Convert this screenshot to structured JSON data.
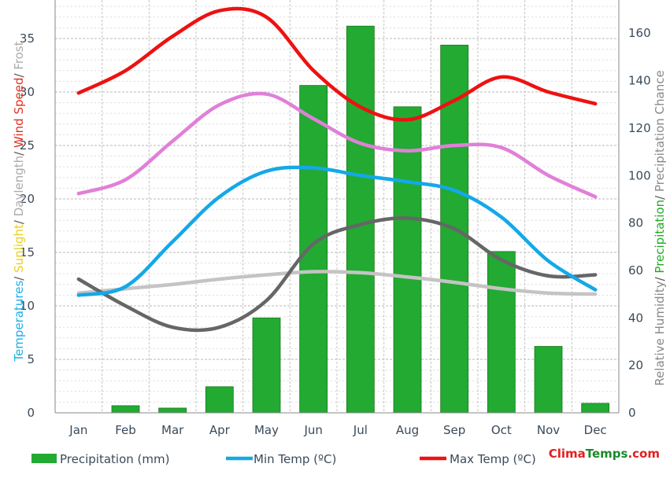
{
  "chart_data": {
    "type": "bar+line",
    "categories": [
      "Jan",
      "Feb",
      "Mar",
      "Apr",
      "May",
      "Jun",
      "Jul",
      "Aug",
      "Sep",
      "Oct",
      "Nov",
      "Dec"
    ],
    "left_axis": {
      "title_parts": [
        {
          "text": "Tempera",
          "color": "#1eaee8"
        },
        {
          "text": "tures",
          "color": "#1eaee8"
        },
        {
          "text": "/ ",
          "color": "#555555"
        },
        {
          "text": "Sunlight",
          "color": "#e8d020"
        },
        {
          "text": "/ ",
          "color": "#555555"
        },
        {
          "text": "Daylength",
          "color": "#aaaaaa"
        },
        {
          "text": "/ ",
          "color": "#555555"
        },
        {
          "text": "Wind Speed",
          "color": "#e03020"
        },
        {
          "text": "/ ",
          "color": "#555555"
        },
        {
          "text": "Frost",
          "color": "#aaaaaa"
        }
      ],
      "ticks": [
        0,
        5,
        10,
        15,
        20,
        25,
        30,
        35
      ],
      "ylim": [
        0,
        38.6
      ]
    },
    "right_axis": {
      "title_parts": [
        {
          "text": "Relative Humidity",
          "color": "#888888"
        },
        {
          "text": "/ ",
          "color": "#555555"
        },
        {
          "text": "Precipitation",
          "color": "#22aa22"
        },
        {
          "text": "/ ",
          "color": "#555555"
        },
        {
          "text": "Precipitation Chance",
          "color": "#888888"
        }
      ],
      "ticks": [
        0,
        20,
        40,
        60,
        80,
        100,
        120,
        140,
        160
      ],
      "ylim": [
        0,
        174
      ]
    },
    "precipitation": {
      "name": "Precipitation (mm)",
      "color": "#22aa33",
      "axis": "right",
      "values": [
        0,
        3,
        2,
        11,
        40,
        138,
        163,
        129,
        155,
        68,
        28,
        4
      ]
    },
    "lines": [
      {
        "key": "min_temp",
        "color": "#14a8e8",
        "axis": "left",
        "values": [
          11.0,
          11.8,
          16.0,
          20.2,
          22.6,
          22.9,
          22.2,
          21.6,
          20.8,
          18.3,
          14.2,
          11.5
        ]
      },
      {
        "key": "max_temp",
        "color": "#ee1111",
        "axis": "left",
        "values": [
          29.9,
          32.0,
          35.2,
          37.6,
          37.0,
          32.0,
          28.6,
          27.4,
          29.2,
          31.4,
          30.0,
          28.9
        ]
      },
      {
        "key": "pink",
        "color": "#e080d8",
        "axis": "left",
        "values": [
          20.5,
          21.8,
          25.4,
          28.8,
          29.8,
          27.5,
          25.2,
          24.5,
          25.0,
          24.8,
          22.2,
          20.2
        ]
      },
      {
        "key": "dark_gray",
        "color": "#666666",
        "axis": "left",
        "values": [
          12.5,
          10.0,
          8.0,
          8.0,
          10.5,
          15.8,
          17.6,
          18.2,
          17.2,
          14.3,
          12.8,
          12.9
        ]
      },
      {
        "key": "light_gray",
        "color": "#c4c4c4",
        "axis": "left",
        "values": [
          11.2,
          11.6,
          12.0,
          12.5,
          12.9,
          13.2,
          13.1,
          12.7,
          12.2,
          11.6,
          11.2,
          11.1
        ]
      }
    ],
    "legend": [
      {
        "label": "Precipitation (mm)",
        "color": "#22aa33",
        "shape": "bar"
      },
      {
        "label": "Min Temp (ºC)",
        "color": "#14a8e8",
        "shape": "line"
      },
      {
        "label": "Max Temp (ºC)",
        "color": "#ee1111",
        "shape": "line"
      }
    ],
    "grid": true,
    "legend_position": "bottom"
  },
  "brand": {
    "part1": "Clima",
    "part2": "Temps",
    "part3": ".com",
    "color1": "#e02020",
    "color2": "#1a8a2a",
    "color3": "#e02020"
  }
}
